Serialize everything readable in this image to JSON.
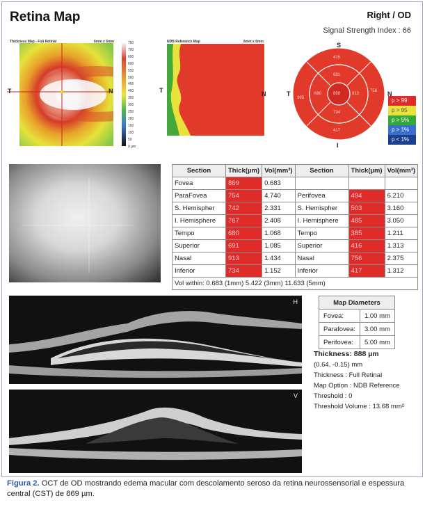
{
  "header": {
    "title": "Retina Map",
    "eye": "Right / OD",
    "signal_strength": "Signal Strength Index : 66"
  },
  "thickness_map": {
    "label": "Thickness Map - Full Retinal",
    "size": "6mm x 6mm",
    "scale_ticks": [
      "750",
      "700",
      "650",
      "600",
      "550",
      "500",
      "450",
      "400",
      "350",
      "300",
      "250",
      "200",
      "150",
      "100",
      "50",
      "0 µm"
    ],
    "n_label": "N",
    "t_label": "T"
  },
  "ndb_map": {
    "label": "NDB Reference Map",
    "size": "6mm x 6mm",
    "t_label": "T",
    "n_label": "N"
  },
  "etdrs": {
    "s_label": "S",
    "i_label": "I",
    "t_label": "T",
    "n_label": "N",
    "values": {
      "center": "869",
      "inner_sup": "691",
      "inner_inf": "734",
      "inner_temp": "680",
      "inner_nasal": "913",
      "outer_sup": "416",
      "outer_inf": "417",
      "outer_temp": "385",
      "outer_nasal": "756"
    }
  },
  "legend": [
    {
      "label": "p > 99",
      "color": "#e02b2b"
    },
    {
      "label": "p > 95",
      "color": "#e8e23a"
    },
    {
      "label": "p > 5%",
      "color": "#34a83a"
    },
    {
      "label": "p > 1%",
      "color": "#3a6fd0"
    },
    {
      "label": "p < 1%",
      "color": "#1c3f8f"
    }
  ],
  "table": {
    "headers": [
      "Section",
      "Thick(µm)",
      "Vol(mm³)",
      "Section",
      "Thick(µm)",
      "Vol(mm³)"
    ],
    "rows": [
      [
        "Fovea",
        "869",
        "0.683",
        "",
        "",
        ""
      ],
      [
        "ParaFovea",
        "754",
        "4.740",
        "Perifovea",
        "494",
        "6.210"
      ],
      [
        "S. Hemispher",
        "742",
        "2.331",
        "S. Hemispher",
        "503",
        "3.160"
      ],
      [
        "I. Hemisphere",
        "767",
        "2.408",
        "I. Hemisphere",
        "485",
        "3.050"
      ],
      [
        "Tempo",
        "680",
        "1.068",
        "Tempo",
        "385",
        "1.211"
      ],
      [
        "Superior",
        "691",
        "1.085",
        "Superior",
        "416",
        "1.313"
      ],
      [
        "Nasal",
        "913",
        "1.434",
        "Nasal",
        "756",
        "2.375"
      ],
      [
        "Inferior",
        "734",
        "1.152",
        "Inferior",
        "417",
        "1.312"
      ]
    ],
    "vol_within": "Vol within: 0.683 (1mm) 5.422 (3mm) 11.633 (5mm)"
  },
  "map_diameters": {
    "title": "Map Diameters",
    "rows": [
      [
        "Fovea:",
        "1.00 mm"
      ],
      [
        "Parafovea:",
        "3.00 mm"
      ],
      [
        "Perifovea:",
        "5.00 mm"
      ]
    ]
  },
  "info": {
    "thickness": "Thickness: 888 µm",
    "coords": "(0.64, -0.15) mm",
    "thickness_type": "Thickness : Full Retinal",
    "map_option": "Map Option : NDB Reference",
    "threshold": "Threshold : 0",
    "threshold_volume": "Threshold Volume : 13.68 mm²"
  },
  "oct_markers": {
    "h": "H",
    "v": "V"
  },
  "caption": {
    "label": "Figura 2.",
    "text": " OCT de OD mostrando edema macular com descolamento seroso da retina neurossensorial e espessura central (CST) de 869 µm."
  }
}
